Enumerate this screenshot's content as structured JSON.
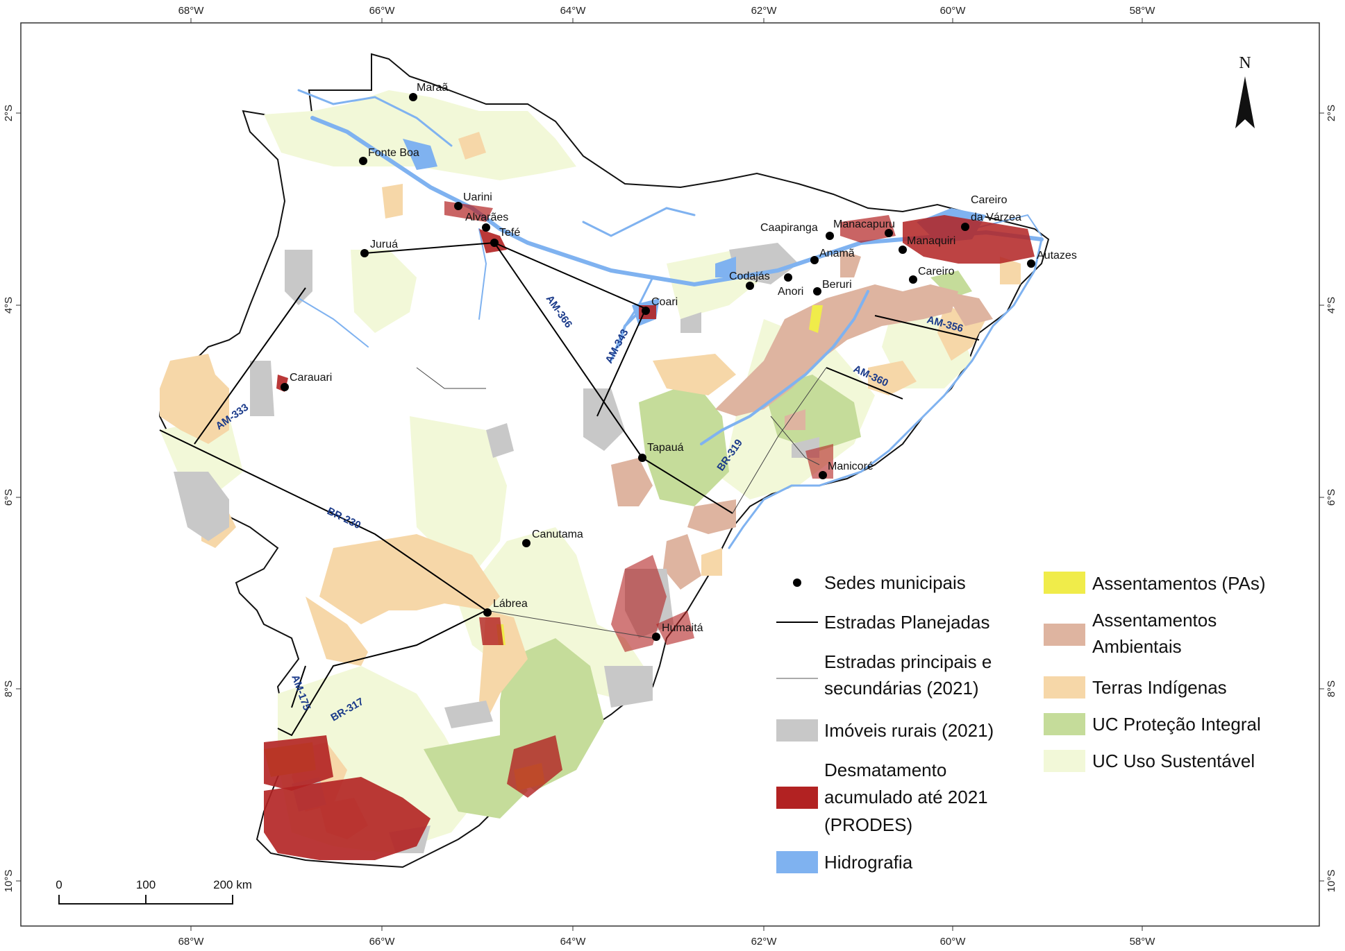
{
  "colors": {
    "deforestation": "#b22222",
    "hydrography": "#7fb2f0",
    "rural_properties": "#c8c8c8",
    "settlements_pa": "#f0ec4a",
    "env_settlements": "#deb4a0",
    "indigenous_lands": "#f6d7a8",
    "uc_integral": "#c5dc9a",
    "uc_sustainable": "#f2f8d8",
    "roads_planned": "#000000"
  },
  "axes": {
    "lon_top": [
      "68°W",
      "66°W",
      "64°W",
      "62°W",
      "60°W",
      "58°W"
    ],
    "lon_bottom": [
      "68°W",
      "66°W",
      "64°W",
      "62°W",
      "60°W",
      "58°W"
    ],
    "lat_left": [
      "2°S",
      "4°S",
      "6°S",
      "8°S",
      "10°S"
    ],
    "lat_right": [
      "2°S",
      "4°S",
      "6°S",
      "8°S",
      "10°S"
    ]
  },
  "north_arrow": {
    "label": "N",
    "icon": "north-arrow-icon"
  },
  "cities": [
    {
      "id": "maraa",
      "name": "Maraã"
    },
    {
      "id": "fonte-boa",
      "name": "Fonte Boa"
    },
    {
      "id": "uarini",
      "name": "Uarini"
    },
    {
      "id": "alvaraes",
      "name": "Alvarães"
    },
    {
      "id": "tefe",
      "name": "Tefé"
    },
    {
      "id": "jurua",
      "name": "Juruá"
    },
    {
      "id": "coari",
      "name": "Coari"
    },
    {
      "id": "codajas",
      "name": "Codajás"
    },
    {
      "id": "anori",
      "name": "Anori"
    },
    {
      "id": "berur",
      "name": "Beruri"
    },
    {
      "id": "anama",
      "name": "Anamã"
    },
    {
      "id": "caapiranga",
      "name": "Caapiranga"
    },
    {
      "id": "manacapuru",
      "name": "Manacapuru"
    },
    {
      "id": "manaquiri",
      "name": "Manaquiri"
    },
    {
      "id": "careiro-varzea-1",
      "name": "Careiro"
    },
    {
      "id": "careiro-varzea-2",
      "name": "da Várzea"
    },
    {
      "id": "autazes",
      "name": "Autazes"
    },
    {
      "id": "careiro",
      "name": "Careiro"
    },
    {
      "id": "carauari",
      "name": "Carauari"
    },
    {
      "id": "tapaua",
      "name": "Tapauá"
    },
    {
      "id": "manicore",
      "name": "Manicoré"
    },
    {
      "id": "canutama",
      "name": "Canutama"
    },
    {
      "id": "labrea",
      "name": "Lábrea"
    },
    {
      "id": "humaita",
      "name": "Humaitá"
    }
  ],
  "roads": [
    "AM-366",
    "AM-343",
    "AM-356",
    "AM-360",
    "BR-319",
    "AM-333",
    "BR-230",
    "BR-317",
    "AM-175"
  ],
  "legend": {
    "sedes": "Sedes municipais",
    "planned": "Estradas Planejadas",
    "main_roads_1": "Estradas principais e",
    "main_roads_2": "secundárias (2021)",
    "rural": "Imóveis rurais (2021)",
    "deforest_1": "Desmatamento",
    "deforest_2": "acumulado até 2021",
    "deforest_3": "(PRODES)",
    "hydro": "Hidrografia",
    "pa": "Assentamentos (PAs)",
    "env_1": "Assentamentos",
    "env_2": "Ambientais",
    "indigenous": "Terras Indígenas",
    "uc_integral": "UC Proteção Integral",
    "uc_sustainable": "UC Uso Sustentável"
  },
  "scale_bar": {
    "ticks": [
      "0",
      "100",
      "200 km"
    ]
  }
}
